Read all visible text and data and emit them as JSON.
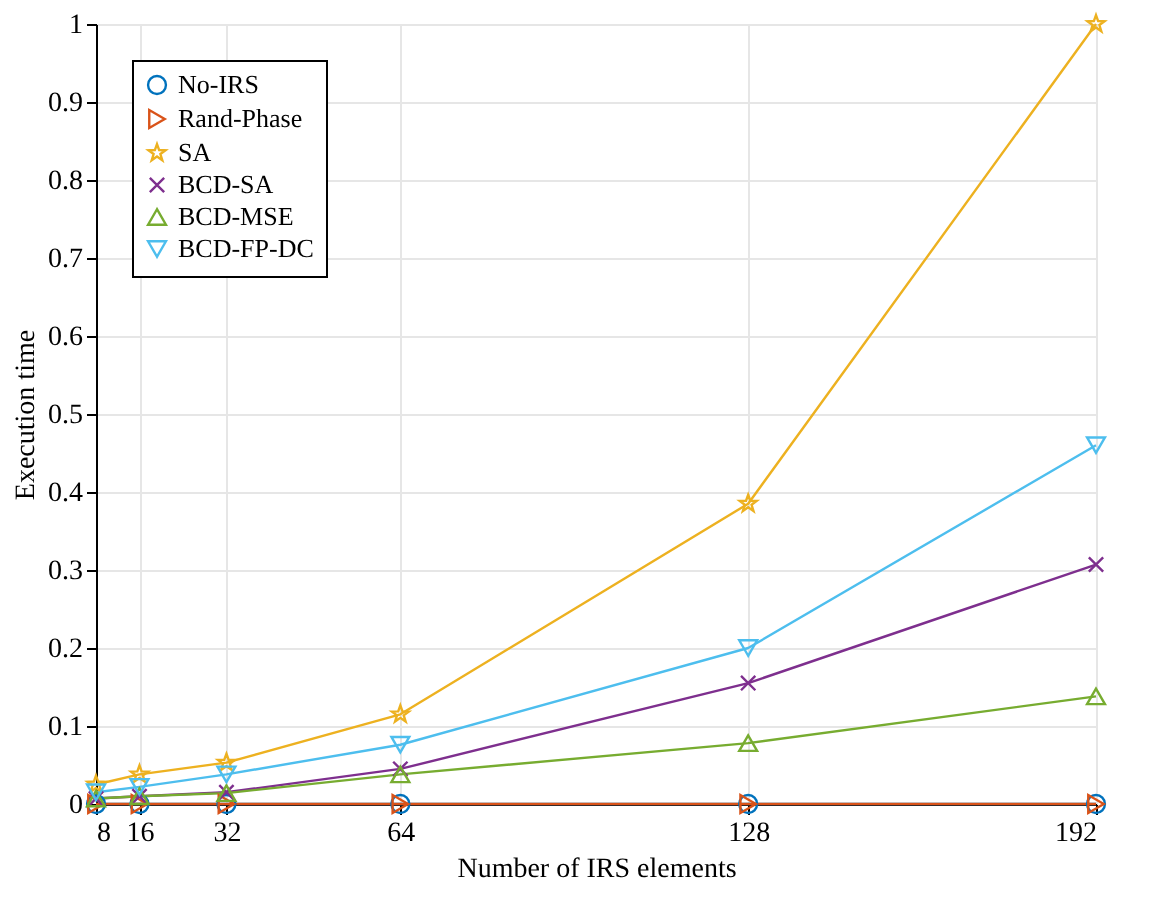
{
  "chart_data": {
    "type": "line",
    "xlabel": "Number of IRS elements",
    "ylabel": "Execution time",
    "x": [
      8,
      16,
      32,
      64,
      128,
      192
    ],
    "series": [
      {
        "name": "No-IRS",
        "color": "#0072bd",
        "marker": "circle",
        "values": [
          0,
          0,
          0,
          0,
          0,
          0
        ]
      },
      {
        "name": "Rand-Phase",
        "color": "#d95319",
        "marker": "triangle-right",
        "values": [
          0,
          0,
          0,
          0,
          0,
          0
        ]
      },
      {
        "name": "SA",
        "color": "#edb120",
        "marker": "star",
        "values": [
          0.025,
          0.038,
          0.053,
          0.115,
          0.385,
          1.0
        ]
      },
      {
        "name": "BCD-SA",
        "color": "#7e2f8e",
        "marker": "cross",
        "values": [
          0.007,
          0.01,
          0.015,
          0.045,
          0.155,
          0.307
        ]
      },
      {
        "name": "BCD-MSE",
        "color": "#77ac30",
        "marker": "triangle",
        "values": [
          0.007,
          0.01,
          0.014,
          0.038,
          0.078,
          0.138
        ]
      },
      {
        "name": "BCD-FP-DC",
        "color": "#4dbeee",
        "marker": "triangle-down",
        "values": [
          0.015,
          0.022,
          0.038,
          0.076,
          0.2,
          0.46
        ]
      }
    ],
    "xlim": [
      8,
      192
    ],
    "xticks": [
      8,
      16,
      32,
      64,
      128,
      192
    ],
    "ylim": [
      0,
      1
    ],
    "yticks": [
      0,
      0.1,
      0.2,
      0.3,
      0.4,
      0.5,
      0.6,
      0.7,
      0.8,
      0.9,
      1
    ],
    "grid": true,
    "legend": "top left",
    "line_style": "solid"
  }
}
